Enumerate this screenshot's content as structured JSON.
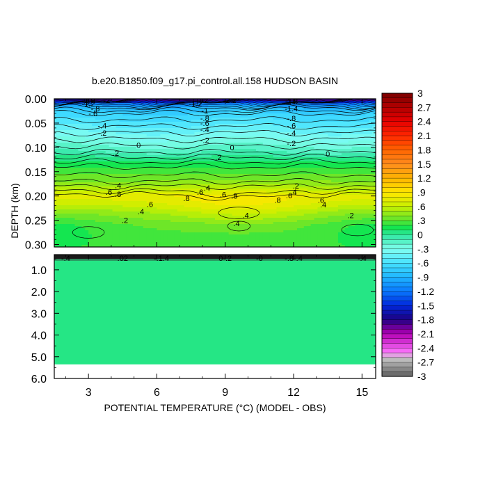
{
  "chart_data": {
    "type": "contour",
    "title": "b.e20.B1850.f09_g17.pi_control.all.158 HUDSON BASIN",
    "xlabel": "POTENTIAL TEMPERATURE (°C) (MODEL - OBS)",
    "ylabel": "DEPTH (km)",
    "xlim": [
      1.5,
      15.6
    ],
    "x_ticks": [
      "3",
      "6",
      "9",
      "12",
      "15"
    ],
    "upper_panel": {
      "ylim": [
        0.0,
        0.305
      ],
      "y_ticks": [
        "0.00",
        "0.05",
        "0.10",
        "0.15",
        "0.20",
        "0.25",
        "0.30"
      ],
      "profile": [
        {
          "depth": 0.0,
          "value": -2.0
        },
        {
          "depth": 0.005,
          "value": -1.6
        },
        {
          "depth": 0.01,
          "value": -1.2
        },
        {
          "depth": 0.018,
          "value": -0.9
        },
        {
          "depth": 0.03,
          "value": -0.7
        },
        {
          "depth": 0.05,
          "value": -0.55
        },
        {
          "depth": 0.07,
          "value": -0.4
        },
        {
          "depth": 0.09,
          "value": -0.25
        },
        {
          "depth": 0.11,
          "value": -0.1
        },
        {
          "depth": 0.125,
          "value": 0.05
        },
        {
          "depth": 0.14,
          "value": 0.2
        },
        {
          "depth": 0.165,
          "value": 0.35
        },
        {
          "depth": 0.185,
          "value": 0.55
        },
        {
          "depth": 0.2,
          "value": 0.75
        },
        {
          "depth": 0.215,
          "value": 0.65
        },
        {
          "depth": 0.235,
          "value": 0.45
        },
        {
          "depth": 0.26,
          "value": 0.3
        },
        {
          "depth": 0.3,
          "value": 0.25
        }
      ],
      "contour_labels": [
        {
          "text": "-1.9",
          "x": 3.0,
          "y": 0.003
        },
        {
          "text": "-1.2",
          "x": 3.0,
          "y": 0.01
        },
        {
          "text": "-.8",
          "x": 3.3,
          "y": 0.02
        },
        {
          "text": "-.6",
          "x": 3.2,
          "y": 0.03
        },
        {
          "text": "-.4",
          "x": 3.6,
          "y": 0.055
        },
        {
          "text": "-.2",
          "x": 3.6,
          "y": 0.07
        },
        {
          "text": "-2",
          "x": 3.8,
          "y": 0.003
        },
        {
          "text": "-1.2",
          "x": 7.7,
          "y": 0.01
        },
        {
          "text": "-1",
          "x": 8.1,
          "y": 0.024
        },
        {
          "text": "-.8",
          "x": 8.1,
          "y": 0.04
        },
        {
          "text": "-.6",
          "x": 8.1,
          "y": 0.05
        },
        {
          "text": "-.4",
          "x": 8.1,
          "y": 0.063
        },
        {
          "text": "-.2",
          "x": 8.1,
          "y": 0.085
        },
        {
          "text": "-2",
          "x": 8.1,
          "y": 0.003
        },
        {
          "text": "-2.2",
          "x": 9.2,
          "y": 0.003
        },
        {
          "text": "-1.8",
          "x": 11.9,
          "y": 0.005
        },
        {
          "text": "-1.4",
          "x": 11.9,
          "y": 0.02
        },
        {
          "text": "-.8",
          "x": 11.9,
          "y": 0.04
        },
        {
          "text": "-.6",
          "x": 11.9,
          "y": 0.055
        },
        {
          "text": "-.4",
          "x": 11.9,
          "y": 0.07
        },
        {
          "text": "-.2",
          "x": 11.9,
          "y": 0.092
        },
        {
          "text": "0",
          "x": 5.2,
          "y": 0.095
        },
        {
          "text": "0",
          "x": 9.3,
          "y": 0.1
        },
        {
          "text": "0",
          "x": 13.5,
          "y": 0.113
        },
        {
          "text": ".2",
          "x": 4.2,
          "y": 0.112
        },
        {
          "text": ".2",
          "x": 8.7,
          "y": 0.12
        },
        {
          "text": ".4",
          "x": 4.3,
          "y": 0.178
        },
        {
          "text": ".4",
          "x": 8.2,
          "y": 0.183
        },
        {
          "text": ".4",
          "x": 12.0,
          "y": 0.192
        },
        {
          "text": ".6",
          "x": 3.9,
          "y": 0.192
        },
        {
          "text": ".8",
          "x": 4.3,
          "y": 0.196
        },
        {
          "text": ".6",
          "x": 7.9,
          "y": 0.192
        },
        {
          "text": ".6",
          "x": 8.9,
          "y": 0.197
        },
        {
          "text": ".8",
          "x": 9.4,
          "y": 0.2
        },
        {
          "text": ".8",
          "x": 7.3,
          "y": 0.205
        },
        {
          "text": ".6",
          "x": 11.8,
          "y": 0.199
        },
        {
          "text": ".8",
          "x": 11.3,
          "y": 0.208
        },
        {
          "text": ".2",
          "x": 12.1,
          "y": 0.179
        },
        {
          "text": ".6",
          "x": 13.2,
          "y": 0.208
        },
        {
          "text": ".4",
          "x": 13.3,
          "y": 0.218
        },
        {
          "text": ".6",
          "x": 5.7,
          "y": 0.217
        },
        {
          "text": ".4",
          "x": 5.3,
          "y": 0.232
        },
        {
          "text": ".2",
          "x": 4.6,
          "y": 0.25
        },
        {
          "text": ".4",
          "x": 9.9,
          "y": 0.24
        },
        {
          "text": ".4",
          "x": 9.5,
          "y": 0.256
        },
        {
          "text": ".2",
          "x": 14.5,
          "y": 0.24
        }
      ]
    },
    "lower_panel": {
      "ylim": [
        0.3,
        6.0
      ],
      "y_ticks": [
        "1.0",
        "2.0",
        "3.0",
        "4.0",
        "5.0",
        "6.0"
      ],
      "data_bottom_depth": 5.35,
      "fill_value": 0.05,
      "contour_labels": [
        {
          "text": "-.4",
          "x": 2.0,
          "y": 0.45
        },
        {
          "text": ".02",
          "x": 4.5,
          "y": 0.45
        },
        {
          "text": "-.1.4",
          "x": 6.2,
          "y": 0.45
        },
        {
          "text": "0-.2",
          "x": 9.0,
          "y": 0.45
        },
        {
          "text": "-0",
          "x": 10.5,
          "y": 0.45
        },
        {
          "text": "-.8-.4",
          "x": 12.0,
          "y": 0.45
        },
        {
          "text": "-.4",
          "x": 15.0,
          "y": 0.45
        }
      ]
    },
    "colorbar": {
      "labels": [
        "3",
        "2.7",
        "2.4",
        "2.1",
        "1.8",
        "1.5",
        "1.2",
        ".9",
        ".6",
        ".3",
        "0",
        "-.3",
        "-.6",
        "-.9",
        "-1.2",
        "-1.5",
        "-1.8",
        "-2.1",
        "-2.4",
        "-2.7",
        "-3"
      ],
      "min": -3,
      "max": 3,
      "n_levels": 60,
      "stops": [
        {
          "v": -3.0,
          "c": "#606060"
        },
        {
          "v": -2.6,
          "c": "#c8c8c8"
        },
        {
          "v": -2.5,
          "c": "#ff78ff"
        },
        {
          "v": -2.1,
          "c": "#b400b4"
        },
        {
          "v": -1.8,
          "c": "#1e0082"
        },
        {
          "v": -1.5,
          "c": "#0028dc"
        },
        {
          "v": -1.2,
          "c": "#0a78ff"
        },
        {
          "v": -0.9,
          "c": "#1eb4ff"
        },
        {
          "v": -0.6,
          "c": "#46e1ff"
        },
        {
          "v": -0.3,
          "c": "#82fff0"
        },
        {
          "v": 0.0,
          "c": "#2ee6a0"
        },
        {
          "v": 0.15,
          "c": "#14e650"
        },
        {
          "v": 0.35,
          "c": "#6ee628"
        },
        {
          "v": 0.6,
          "c": "#c8f000"
        },
        {
          "v": 0.9,
          "c": "#ffe600"
        },
        {
          "v": 1.2,
          "c": "#ffb400"
        },
        {
          "v": 1.5,
          "c": "#ff8c1e"
        },
        {
          "v": 1.8,
          "c": "#ff6400"
        },
        {
          "v": 2.1,
          "c": "#ff2800"
        },
        {
          "v": 2.4,
          "c": "#e60000"
        },
        {
          "v": 2.7,
          "c": "#b40000"
        },
        {
          "v": 3.0,
          "c": "#780000"
        }
      ]
    }
  }
}
